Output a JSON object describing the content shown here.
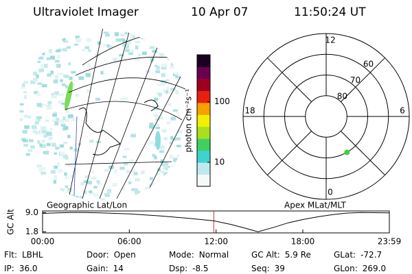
{
  "header": {
    "instrument": "Ultraviolet Imager",
    "date": "10 Apr 07",
    "time": "11:50:24 UT"
  },
  "chart_data": [
    {
      "type": "image",
      "title": "Geographic Lat/Lon"
    },
    {
      "type": "colorbar",
      "label": "photon cm⁻²s⁻¹",
      "log": true,
      "ylim": [
        4,
        600
      ],
      "yticks": [
        10,
        100
      ],
      "colors": [
        "#f4fafa",
        "#bfe9ee",
        "#3fd3cf",
        "#40d060",
        "#a8e020",
        "#f0f000",
        "#f8a000",
        "#e82010",
        "#a00020",
        "#6a0050",
        "#1a0020"
      ]
    },
    {
      "type": "polar",
      "title": "Apex MLat/MLT",
      "rlim": [
        90,
        50
      ],
      "rticks": [
        80,
        70,
        60
      ],
      "angle_ticks": [
        12,
        18,
        6,
        0
      ],
      "series": [
        {
          "color": "#40d040",
          "x": [
            2
          ],
          "values": [
            70
          ]
        }
      ]
    },
    {
      "type": "line",
      "ylabel": "GC Alt",
      "xlim": [
        0,
        23.983
      ],
      "ylim": [
        1.4,
        9.6
      ],
      "xticks": [
        {
          "value": 0,
          "label": "00:00"
        },
        {
          "value": 6,
          "label": "06:00"
        },
        {
          "value": 12,
          "label": "12:00"
        },
        {
          "value": 18,
          "label": "18:00"
        },
        {
          "value": 23.983,
          "label": "23:59"
        }
      ],
      "yticks": [
        {
          "value": 9.0,
          "label": "9.0"
        },
        {
          "value": 1.8,
          "label": "1.8"
        }
      ],
      "vline": {
        "x": 11.84,
        "color": "#c03030"
      },
      "series": [
        {
          "color": "#000000",
          "x": [
            0,
            1,
            2,
            3,
            4,
            6,
            8,
            10,
            11.84,
            13,
            14,
            14.9,
            16,
            17,
            18,
            19,
            20,
            21,
            22,
            23.983
          ],
          "values": [
            8.7,
            8.9,
            9.0,
            9.0,
            8.9,
            8.5,
            7.8,
            6.9,
            5.9,
            4.6,
            3.2,
            1.8,
            3.5,
            5.2,
            6.4,
            7.4,
            8.2,
            8.8,
            9.0,
            8.9
          ]
        }
      ]
    }
  ],
  "info": [
    [
      {
        "label": "Flt:",
        "value": "LBHL"
      },
      {
        "label": "Door:",
        "value": "Open"
      },
      {
        "label": "Mode:",
        "value": "Normal"
      },
      {
        "label": "GC Alt:",
        "value": "5.9 Re"
      },
      {
        "label": "GLat:",
        "value": "-72.7"
      }
    ],
    [
      {
        "label": "IP:",
        "value": "36.0"
      },
      {
        "label": "Gain:",
        "value": "14"
      },
      {
        "label": "Dsp:",
        "value": "-8.5"
      },
      {
        "label": "Seq:",
        "value": "39"
      },
      {
        "label": "GLon:",
        "value": "269.0"
      }
    ]
  ]
}
